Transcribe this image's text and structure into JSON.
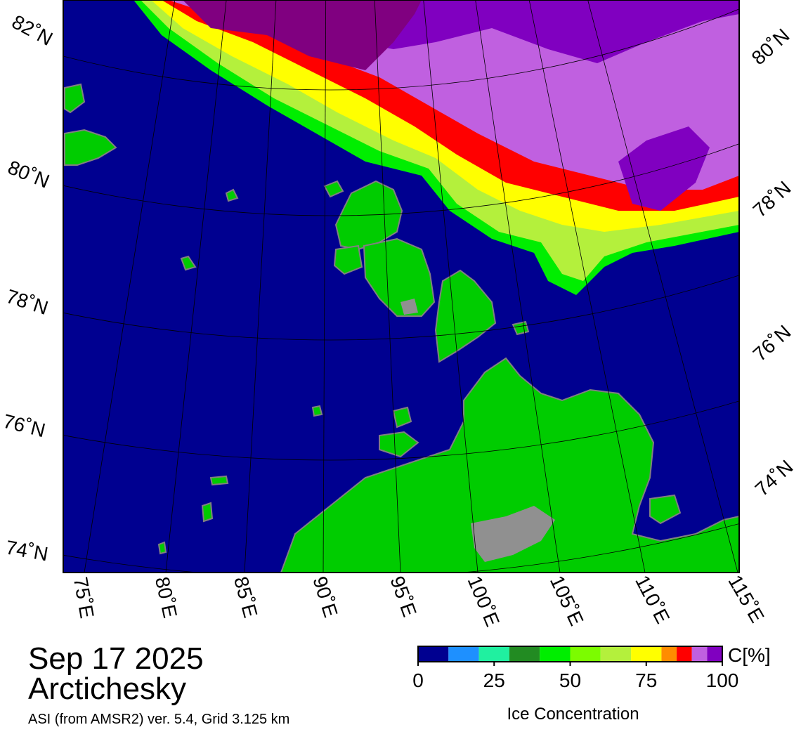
{
  "map": {
    "date": "Sep 17 2025",
    "region": "Arctichesky",
    "source": "ASI (from AMSR2) ver. 5.4,  Grid 3.125 km",
    "lat_labels_left": [
      "82˚N",
      "80˚N",
      "78˚N",
      "76˚N",
      "74˚N"
    ],
    "lat_labels_right": [
      "80˚N",
      "78˚N",
      "76˚N",
      "74˚N"
    ],
    "lon_labels": [
      "75˚E",
      "80˚E",
      "85˚E",
      "90˚E",
      "95˚E",
      "100˚E",
      "105˚E",
      "110˚E",
      "115˚E"
    ],
    "colorbar": {
      "label": "Ice Concentration",
      "unit": "C[%]",
      "lim": [
        0,
        100
      ],
      "ticks": [
        0,
        25,
        50,
        75,
        100
      ],
      "bounds": [
        0,
        10,
        20,
        30,
        40,
        50,
        60,
        70,
        80,
        85,
        90,
        95,
        100
      ],
      "colors": [
        "#000090",
        "#1e90ff",
        "#20f0a0",
        "#228b22",
        "#00ee00",
        "#7cfc00",
        "#b4f03c",
        "#ffff00",
        "#ff8c00",
        "#ff0000",
        "#c060e0",
        "#8000c0"
      ]
    }
  }
}
